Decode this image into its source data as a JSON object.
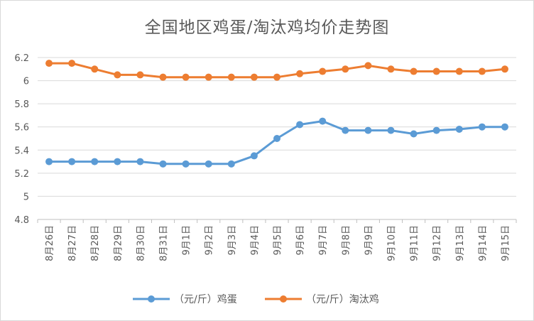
{
  "chart_data": {
    "type": "line",
    "title": "全国地区鸡蛋/淘汰鸡均价走势图",
    "xlabel": "",
    "ylabel": "",
    "categories": [
      "8月26日",
      "8月27日",
      "8月28日",
      "8月29日",
      "8月30日",
      "8月31日",
      "9月1日",
      "9月2日",
      "9月3日",
      "9月4日",
      "9月5日",
      "9月6日",
      "9月7日",
      "9月8日",
      "9月9日",
      "9月10日",
      "9月11日",
      "9月12日",
      "9月13日",
      "9月14日",
      "9月15日"
    ],
    "ylim": [
      4.8,
      6.2
    ],
    "yticks": [
      "4.8",
      "5",
      "5.2",
      "5.4",
      "5.6",
      "5.8",
      "6",
      "6.2"
    ],
    "grid": true,
    "legend_position": "bottom",
    "series": [
      {
        "name": "（元/斤）鸡蛋",
        "color": "#5b9bd5",
        "values": [
          5.3,
          5.3,
          5.3,
          5.3,
          5.3,
          5.28,
          5.28,
          5.28,
          5.28,
          5.35,
          5.5,
          5.62,
          5.65,
          5.57,
          5.57,
          5.57,
          5.54,
          5.57,
          5.58,
          5.6,
          5.6
        ]
      },
      {
        "name": "（元/斤）淘汰鸡",
        "color": "#ed7d31",
        "values": [
          6.15,
          6.15,
          6.1,
          6.05,
          6.05,
          6.03,
          6.03,
          6.03,
          6.03,
          6.03,
          6.03,
          6.06,
          6.08,
          6.1,
          6.13,
          6.1,
          6.08,
          6.08,
          6.08,
          6.08,
          6.1
        ]
      }
    ]
  }
}
